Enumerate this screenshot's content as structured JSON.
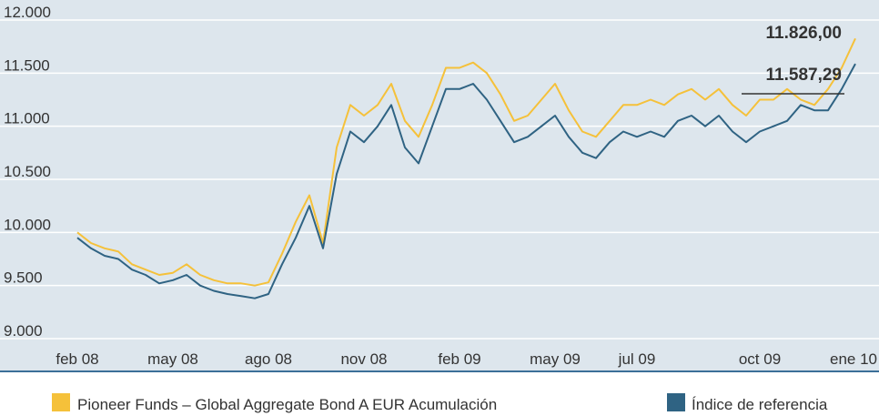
{
  "chart_data": {
    "type": "line",
    "categories": [
      "feb 08",
      null,
      null,
      null,
      null,
      null,
      null,
      "may 08",
      null,
      null,
      null,
      null,
      null,
      null,
      "ago 08",
      null,
      null,
      null,
      null,
      null,
      null,
      "nov 08",
      null,
      null,
      null,
      null,
      null,
      null,
      "feb 09",
      null,
      null,
      null,
      null,
      null,
      null,
      "may 09",
      null,
      null,
      null,
      null,
      null,
      "jul 09",
      null,
      null,
      null,
      null,
      null,
      null,
      null,
      null,
      "oct 09",
      null,
      null,
      null,
      null,
      null,
      null,
      "ene 10"
    ],
    "series": [
      {
        "name": "Pioneer Funds – Global Aggregate Bond  A EUR Acumulación",
        "color": "#f5c13a",
        "values": [
          10000,
          9900,
          9850,
          9820,
          9700,
          9650,
          9600,
          9620,
          9700,
          9600,
          9550,
          9520,
          9520,
          9500,
          9530,
          9800,
          10100,
          10350,
          9900,
          10800,
          11200,
          11100,
          11200,
          11400,
          11050,
          10900,
          11200,
          11550,
          11550,
          11600,
          11500,
          11300,
          11050,
          11100,
          11250,
          11400,
          11150,
          10950,
          10900,
          11050,
          11200,
          11200,
          11250,
          11200,
          11300,
          11350,
          11250,
          11350,
          11200,
          11100,
          11250,
          11250,
          11350,
          11250,
          11200,
          11350,
          11550,
          11826
        ],
        "value_labels": [
          null,
          null,
          null,
          null,
          null,
          null,
          null,
          null,
          null,
          null,
          null,
          null,
          null,
          null,
          null,
          null,
          null,
          null,
          null,
          null,
          null,
          null,
          null,
          null,
          null,
          null,
          null,
          null,
          null,
          null,
          null,
          null,
          null,
          null,
          null,
          null,
          null,
          null,
          null,
          null,
          null,
          null,
          null,
          null,
          null,
          null,
          null,
          null,
          null,
          null,
          null,
          null,
          null,
          null,
          null,
          null,
          null,
          "11.826,00"
        ]
      },
      {
        "name": "Índice de referencia",
        "color": "#2f6383",
        "values": [
          9950,
          9850,
          9780,
          9750,
          9650,
          9600,
          9520,
          9550,
          9600,
          9500,
          9450,
          9420,
          9400,
          9380,
          9420,
          9700,
          9950,
          10250,
          9850,
          10550,
          10950,
          10850,
          11000,
          11200,
          10800,
          10650,
          11000,
          11350,
          11350,
          11400,
          11250,
          11050,
          10850,
          10900,
          11000,
          11100,
          10900,
          10750,
          10700,
          10850,
          10950,
          10900,
          10950,
          10900,
          11050,
          11100,
          11000,
          11100,
          10950,
          10850,
          10950,
          11000,
          11050,
          11200,
          11150,
          11150,
          11350,
          11587.29
        ],
        "value_labels": [
          null,
          null,
          null,
          null,
          null,
          null,
          null,
          null,
          null,
          null,
          null,
          null,
          null,
          null,
          null,
          null,
          null,
          null,
          null,
          null,
          null,
          null,
          null,
          null,
          null,
          null,
          null,
          null,
          null,
          null,
          null,
          null,
          null,
          null,
          null,
          null,
          null,
          null,
          null,
          null,
          null,
          null,
          null,
          null,
          null,
          null,
          null,
          null,
          null,
          null,
          null,
          null,
          null,
          null,
          null,
          null,
          null,
          "11.587,29"
        ]
      }
    ],
    "ylim": [
      9000,
      12000
    ],
    "yticks": [
      {
        "value": 9000,
        "label": "9.000"
      },
      {
        "value": 9500,
        "label": "9.500"
      },
      {
        "value": 10000,
        "label": "10.000"
      },
      {
        "value": 10500,
        "label": "10.500"
      },
      {
        "value": 11000,
        "label": "11.000"
      },
      {
        "value": 11500,
        "label": "11.500"
      },
      {
        "value": 12000,
        "label": "12.000"
      }
    ],
    "grid": true
  }
}
